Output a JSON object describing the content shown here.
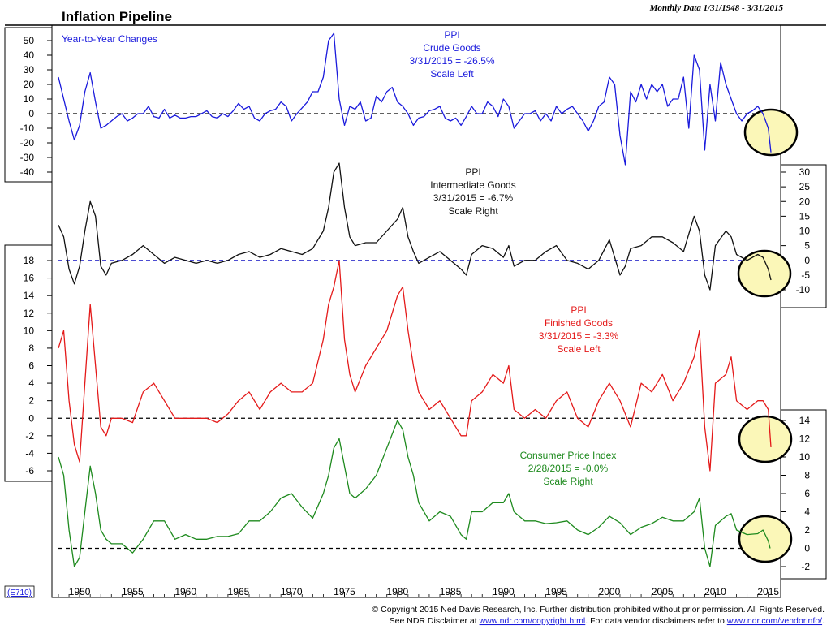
{
  "header": {
    "title": "Inflation Pipeline",
    "date_range": "Monthly Data 1/31/1948 - 3/31/2015",
    "subtitle": "Year-to-Year Changes"
  },
  "footer": {
    "code": "(E710)",
    "copyright": "© Copyright 2015 Ned Davis Research, Inc.  Further distribution prohibited without prior permission.  All Rights Reserved.",
    "disclaimer_prefix": "See NDR Disclaimer at ",
    "disclaimer_url1": "www.ndr.com/copyright.html",
    "disclaimer_middle": ". For data vendor disclaimers refer to ",
    "disclaimer_url2": "www.ndr.com/vendorinfo/",
    "disclaimer_suffix": "."
  },
  "colors": {
    "crude": "#1a1adc",
    "intermediate": "#111111",
    "finished": "#e41a1a",
    "cpi": "#1e8a1e",
    "highlight_fill": "#fbf7b8",
    "zero_line_blue": "#3333cc"
  },
  "chart_data": {
    "type": "line",
    "x_axis": {
      "label": "",
      "range": [
        1948,
        2015.25
      ],
      "ticks": [
        1950,
        1955,
        1960,
        1965,
        1970,
        1975,
        1980,
        1985,
        1990,
        1995,
        2000,
        2005,
        2010,
        2015
      ]
    },
    "axes": [
      {
        "name": "crude_left",
        "side": "left",
        "ticks": [
          50,
          40,
          30,
          20,
          10,
          0,
          -10,
          -20,
          -30,
          -40
        ]
      },
      {
        "name": "intermediate_right",
        "side": "right",
        "ticks": [
          30,
          25,
          20,
          15,
          10,
          5,
          0,
          -5,
          -10
        ]
      },
      {
        "name": "finished_left",
        "side": "left",
        "ticks": [
          18,
          16,
          14,
          12,
          10,
          8,
          6,
          4,
          2,
          0,
          -2,
          -4,
          -6
        ]
      },
      {
        "name": "cpi_right",
        "side": "right",
        "ticks": [
          14,
          12,
          10,
          8,
          6,
          4,
          2,
          0,
          -2
        ]
      }
    ],
    "series": [
      {
        "name": "PPI Crude Goods",
        "label_lines": [
          "PPI",
          "Crude Goods",
          "3/31/2015 = -26.5%",
          "Scale Left"
        ],
        "axis": "crude_left",
        "x": [
          1948.0,
          1948.5,
          1949.0,
          1949.5,
          1950.0,
          1950.5,
          1951.0,
          1951.5,
          1952.0,
          1952.5,
          1953.0,
          1953.5,
          1954.0,
          1954.5,
          1955.0,
          1955.5,
          1956.0,
          1956.5,
          1957.0,
          1957.5,
          1958.0,
          1958.5,
          1959.0,
          1959.5,
          1960.0,
          1960.5,
          1961.0,
          1961.5,
          1962.0,
          1962.5,
          1963.0,
          1963.5,
          1964.0,
          1964.5,
          1965.0,
          1965.5,
          1966.0,
          1966.5,
          1967.0,
          1967.5,
          1968.0,
          1968.5,
          1969.0,
          1969.5,
          1970.0,
          1970.5,
          1971.0,
          1971.5,
          1972.0,
          1972.5,
          1973.0,
          1973.5,
          1974.0,
          1974.5,
          1975.0,
          1975.5,
          1976.0,
          1976.5,
          1977.0,
          1977.5,
          1978.0,
          1978.5,
          1979.0,
          1979.5,
          1980.0,
          1980.5,
          1981.0,
          1981.5,
          1982.0,
          1982.5,
          1983.0,
          1983.5,
          1984.0,
          1984.5,
          1985.0,
          1985.5,
          1986.0,
          1986.5,
          1987.0,
          1987.5,
          1988.0,
          1988.5,
          1989.0,
          1989.5,
          1990.0,
          1990.5,
          1991.0,
          1991.5,
          1992.0,
          1992.5,
          1993.0,
          1993.5,
          1994.0,
          1994.5,
          1995.0,
          1995.5,
          1996.0,
          1996.5,
          1997.0,
          1997.5,
          1998.0,
          1998.5,
          1999.0,
          1999.5,
          2000.0,
          2000.5,
          2001.0,
          2001.5,
          2002.0,
          2002.5,
          2003.0,
          2003.5,
          2004.0,
          2004.5,
          2005.0,
          2005.5,
          2006.0,
          2006.5,
          2007.0,
          2007.5,
          2008.0,
          2008.5,
          2009.0,
          2009.5,
          2010.0,
          2010.5,
          2011.0,
          2011.5,
          2012.0,
          2012.5,
          2013.0,
          2013.5,
          2014.0,
          2014.5,
          2015.0,
          2015.25
        ],
        "y": [
          25,
          10,
          -5,
          -18,
          -8,
          15,
          28,
          8,
          -10,
          -8,
          -5,
          -2,
          0,
          -5,
          -3,
          0,
          0,
          5,
          -2,
          -3,
          3,
          -3,
          -1,
          -3,
          -3,
          -2,
          -2,
          0,
          2,
          -2,
          -3,
          0,
          -2,
          2,
          7,
          3,
          5,
          -3,
          -5,
          0,
          2,
          3,
          8,
          5,
          -5,
          0,
          4,
          8,
          15,
          15,
          25,
          50,
          55,
          10,
          -8,
          5,
          3,
          8,
          -5,
          -3,
          12,
          8,
          15,
          18,
          8,
          5,
          0,
          -8,
          -3,
          -2,
          2,
          3,
          5,
          -3,
          -5,
          -3,
          -8,
          -2,
          5,
          0,
          0,
          8,
          5,
          -2,
          10,
          5,
          -10,
          -5,
          0,
          0,
          2,
          -5,
          0,
          -5,
          5,
          0,
          3,
          5,
          0,
          -5,
          -12,
          -5,
          5,
          8,
          25,
          20,
          -15,
          -35,
          15,
          8,
          20,
          10,
          20,
          15,
          20,
          5,
          10,
          10,
          25,
          -10,
          40,
          30,
          -25,
          20,
          -5,
          35,
          20,
          10,
          0,
          -5,
          0,
          2,
          5,
          0,
          -10,
          -26.5
        ]
      },
      {
        "name": "PPI Intermediate Goods",
        "label_lines": [
          "PPI",
          "Intermediate Goods",
          "3/31/2015 = -6.7%",
          "Scale Right"
        ],
        "axis": "intermediate_right",
        "x": [
          1948.0,
          1948.5,
          1949.0,
          1949.5,
          1950.0,
          1950.5,
          1951.0,
          1951.5,
          1952.0,
          1952.5,
          1953.0,
          1954.0,
          1955.0,
          1956.0,
          1957.0,
          1958.0,
          1959.0,
          1960.0,
          1961.0,
          1962.0,
          1963.0,
          1964.0,
          1965.0,
          1966.0,
          1967.0,
          1968.0,
          1969.0,
          1970.0,
          1971.0,
          1972.0,
          1973.0,
          1973.5,
          1974.0,
          1974.5,
          1975.0,
          1975.5,
          1976.0,
          1977.0,
          1978.0,
          1979.0,
          1980.0,
          1980.5,
          1981.0,
          1981.5,
          1982.0,
          1983.0,
          1984.0,
          1985.0,
          1986.0,
          1986.5,
          1987.0,
          1988.0,
          1989.0,
          1990.0,
          1990.5,
          1991.0,
          1992.0,
          1993.0,
          1994.0,
          1995.0,
          1996.0,
          1997.0,
          1998.0,
          1999.0,
          2000.0,
          2001.0,
          2001.5,
          2002.0,
          2003.0,
          2004.0,
          2005.0,
          2006.0,
          2007.0,
          2008.0,
          2008.5,
          2009.0,
          2009.5,
          2010.0,
          2011.0,
          2011.5,
          2012.0,
          2013.0,
          2014.0,
          2014.5,
          2015.0,
          2015.25
        ],
        "y": [
          12,
          8,
          -3,
          -8,
          -2,
          10,
          20,
          15,
          -2,
          -5,
          -1,
          0,
          2,
          5,
          2,
          -1,
          1,
          0,
          -1,
          0,
          -1,
          0,
          2,
          3,
          1,
          2,
          4,
          3,
          2,
          4,
          10,
          18,
          30,
          33,
          18,
          8,
          5,
          6,
          6,
          10,
          14,
          18,
          8,
          3,
          -1,
          1,
          3,
          0,
          -3,
          -5,
          2,
          5,
          4,
          1,
          5,
          -2,
          0,
          0,
          3,
          5,
          0,
          -1,
          -3,
          0,
          7,
          -5,
          -2,
          4,
          5,
          8,
          8,
          6,
          3,
          15,
          10,
          -5,
          -10,
          5,
          10,
          8,
          2,
          0,
          2,
          1,
          -3,
          -6.7
        ]
      },
      {
        "name": "PPI Finished Goods",
        "label_lines": [
          "PPI",
          "Finished Goods",
          "3/31/2015 = -3.3%",
          "Scale Left"
        ],
        "axis": "finished_left",
        "x": [
          1948.0,
          1948.5,
          1949.0,
          1949.5,
          1950.0,
          1950.5,
          1951.0,
          1951.5,
          1952.0,
          1952.5,
          1953.0,
          1954.0,
          1955.0,
          1956.0,
          1957.0,
          1958.0,
          1959.0,
          1960.0,
          1961.0,
          1962.0,
          1963.0,
          1964.0,
          1965.0,
          1966.0,
          1967.0,
          1968.0,
          1969.0,
          1970.0,
          1971.0,
          1972.0,
          1973.0,
          1973.5,
          1974.0,
          1974.5,
          1975.0,
          1975.5,
          1976.0,
          1977.0,
          1978.0,
          1979.0,
          1980.0,
          1980.5,
          1981.0,
          1981.5,
          1982.0,
          1983.0,
          1984.0,
          1985.0,
          1986.0,
          1986.5,
          1987.0,
          1988.0,
          1989.0,
          1990.0,
          1990.5,
          1991.0,
          1992.0,
          1993.0,
          1994.0,
          1995.0,
          1996.0,
          1997.0,
          1998.0,
          1999.0,
          2000.0,
          2001.0,
          2002.0,
          2003.0,
          2004.0,
          2005.0,
          2006.0,
          2007.0,
          2008.0,
          2008.5,
          2009.0,
          2009.5,
          2010.0,
          2011.0,
          2011.5,
          2012.0,
          2013.0,
          2014.0,
          2014.5,
          2015.0,
          2015.25
        ],
        "y": [
          8,
          10,
          2,
          -3,
          -5,
          4,
          13,
          6,
          -1,
          -2,
          0,
          0,
          -0.5,
          3,
          4,
          2,
          0,
          0,
          0,
          0,
          -0.5,
          0.5,
          2,
          3,
          1,
          3,
          4,
          3,
          3,
          4,
          9,
          13,
          15,
          18,
          9,
          5,
          3,
          6,
          8,
          10,
          14,
          15,
          10,
          6,
          3,
          1,
          2,
          0,
          -2,
          -2,
          2,
          3,
          5,
          4,
          6,
          1,
          0,
          1,
          0,
          2,
          3,
          0,
          -1,
          2,
          4,
          2,
          -1,
          4,
          3,
          5,
          2,
          4,
          7,
          10,
          -1,
          -6,
          4,
          5,
          7,
          2,
          1,
          2,
          2,
          1,
          -3.3
        ]
      },
      {
        "name": "Consumer Price Index",
        "label_lines": [
          "Consumer Price Index",
          "2/28/2015 = -0.0%",
          "Scale Right"
        ],
        "axis": "cpi_right",
        "x": [
          1948.0,
          1948.5,
          1949.0,
          1949.5,
          1950.0,
          1950.5,
          1951.0,
          1951.5,
          1952.0,
          1952.5,
          1953.0,
          1954.0,
          1955.0,
          1956.0,
          1957.0,
          1958.0,
          1959.0,
          1960.0,
          1961.0,
          1962.0,
          1963.0,
          1964.0,
          1965.0,
          1966.0,
          1967.0,
          1968.0,
          1969.0,
          1970.0,
          1971.0,
          1972.0,
          1973.0,
          1973.5,
          1974.0,
          1974.5,
          1975.0,
          1975.5,
          1976.0,
          1977.0,
          1978.0,
          1979.0,
          1980.0,
          1980.5,
          1981.0,
          1981.5,
          1982.0,
          1983.0,
          1984.0,
          1985.0,
          1986.0,
          1986.5,
          1987.0,
          1988.0,
          1989.0,
          1990.0,
          1990.5,
          1991.0,
          1992.0,
          1993.0,
          1994.0,
          1995.0,
          1996.0,
          1997.0,
          1998.0,
          1999.0,
          2000.0,
          2001.0,
          2002.0,
          2003.0,
          2004.0,
          2005.0,
          2006.0,
          2007.0,
          2008.0,
          2008.5,
          2009.0,
          2009.5,
          2010.0,
          2011.0,
          2011.5,
          2012.0,
          2013.0,
          2014.0,
          2014.5,
          2015.0,
          2015.17
        ],
        "y": [
          10,
          8,
          2,
          -2,
          -1,
          4,
          9,
          6,
          2,
          1,
          0.5,
          0.5,
          -0.5,
          1,
          3,
          3,
          1,
          1.5,
          1,
          1,
          1.3,
          1.3,
          1.6,
          3,
          3,
          4,
          5.5,
          6,
          4.5,
          3.3,
          6,
          8,
          11,
          12,
          9,
          6,
          5.5,
          6.5,
          8,
          11,
          14,
          13,
          10,
          8,
          5,
          3,
          4,
          3.5,
          1.5,
          1,
          4,
          4,
          5,
          5,
          6,
          4,
          3,
          3,
          2.7,
          2.8,
          3,
          2,
          1.5,
          2.3,
          3.5,
          2.8,
          1.5,
          2.3,
          2.7,
          3.4,
          3,
          3,
          4,
          5.5,
          0,
          -2,
          2.5,
          3.5,
          3.8,
          2,
          1.5,
          1.6,
          2,
          0.8,
          0
        ]
      }
    ],
    "annotations": [
      "Year-to-Year Changes"
    ],
    "highlights": "circled recent values near 2015 on each series"
  }
}
